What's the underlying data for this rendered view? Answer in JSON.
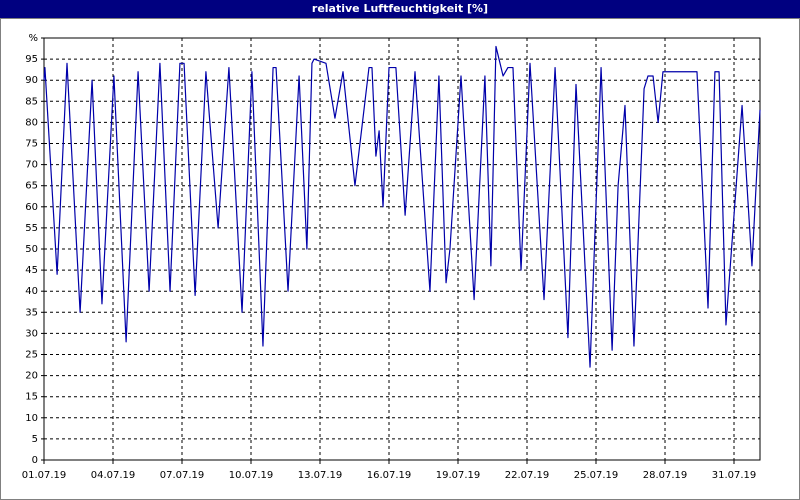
{
  "chart_data": {
    "type": "line",
    "title": "relative Luftfeuchtigkeit [%]",
    "x": [
      0,
      0.04,
      0.57,
      1.0,
      1.57,
      2.09,
      2.52,
      3.04,
      3.57,
      4.09,
      4.57,
      5.04,
      5.48,
      5.91,
      6.09,
      6.57,
      7.04,
      7.57,
      8.04,
      8.61,
      9.04,
      9.52,
      9.96,
      10.09,
      10.61,
      11.09,
      11.43,
      11.65,
      11.74,
      12.26,
      12.65,
      13.0,
      13.52,
      14.13,
      14.26,
      14.43,
      14.57,
      14.74,
      15.0,
      15.3,
      15.7,
      16.13,
      16.78,
      17.17,
      17.48,
      17.65,
      18.13,
      18.7,
      19.17,
      19.43,
      19.65,
      19.96,
      20.17,
      20.39,
      20.74,
      21.13,
      21.74,
      22.22,
      22.78,
      23.13,
      23.74,
      24.22,
      24.7,
      24.96,
      25.26,
      25.65,
      26.09,
      26.26,
      26.48,
      26.7,
      26.91,
      28.39,
      28.87,
      29.17,
      29.35,
      29.65,
      30.35,
      30.78,
      31.13
    ],
    "values": [
      90,
      93,
      44,
      94,
      35,
      90,
      37,
      91,
      28,
      92,
      40,
      94,
      40,
      94,
      94,
      39,
      92,
      55,
      93,
      35,
      92,
      27,
      93,
      93,
      40,
      91,
      50,
      94,
      95,
      94,
      81,
      92,
      65,
      93,
      93,
      72,
      78,
      60,
      93,
      93,
      58,
      92,
      40,
      91,
      42,
      50,
      91,
      38,
      91,
      46,
      98,
      91,
      93,
      93,
      45,
      94,
      38,
      93,
      29,
      89,
      22,
      93,
      26,
      65,
      84,
      27,
      88,
      91,
      91,
      80,
      92,
      92,
      36,
      92,
      92,
      32,
      84,
      46,
      83
    ],
    "color": "#0000aa",
    "xlim": [
      0,
      31.13
    ],
    "xticks": [
      {
        "value": 0,
        "label": "01.07.19"
      },
      {
        "value": 3,
        "label": "04.07.19"
      },
      {
        "value": 6,
        "label": "07.07.19"
      },
      {
        "value": 9,
        "label": "10.07.19"
      },
      {
        "value": 12,
        "label": "13.07.19"
      },
      {
        "value": 15,
        "label": "16.07.19"
      },
      {
        "value": 18,
        "label": "19.07.19"
      },
      {
        "value": 21,
        "label": "22.07.19"
      },
      {
        "value": 24,
        "label": "25.07.19"
      },
      {
        "value": 27,
        "label": "28.07.19"
      },
      {
        "value": 30,
        "label": "31.07.19"
      }
    ],
    "ylim": [
      0,
      100
    ],
    "yticks": [
      0,
      5,
      10,
      15,
      20,
      25,
      30,
      35,
      40,
      45,
      50,
      55,
      60,
      65,
      70,
      75,
      80,
      85,
      90,
      95,
      {
        "value": 100,
        "label": "%"
      }
    ],
    "grid": true
  }
}
